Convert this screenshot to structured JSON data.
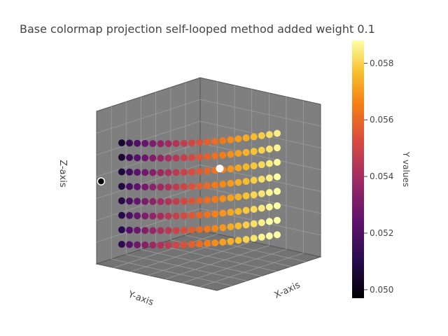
{
  "chart_data": {
    "type": "scatter3d",
    "title": "Base colormap projection self-looped method added weight 0.1",
    "xlabel": "X-axis",
    "ylabel": "Y-axis",
    "zlabel": "Z-axis",
    "colorbar": {
      "title": "Y values",
      "colormap": "inferno",
      "range": [
        0.0497,
        0.0588
      ],
      "ticks": [
        0.05,
        0.052,
        0.054,
        0.056,
        0.058
      ],
      "tick_labels": [
        "0.050",
        "0.052",
        "0.054",
        "0.056",
        "0.058"
      ]
    },
    "grid": true,
    "layers": 8,
    "points_per_layer": 21,
    "value_min_per_layer": 0.0505,
    "value_max_per_layer": 0.0585,
    "highlight_points": [
      {
        "name": "min-point",
        "value": 0.0497,
        "color": "#000004"
      },
      {
        "name": "max-point",
        "value": 0.0588,
        "color": "#fcffa4"
      }
    ]
  },
  "colors": {
    "pane": "#7f7f7f",
    "pane_dark": "#737373",
    "grid": "#9c9c9c",
    "edge": "#555555",
    "text": "#444444"
  }
}
